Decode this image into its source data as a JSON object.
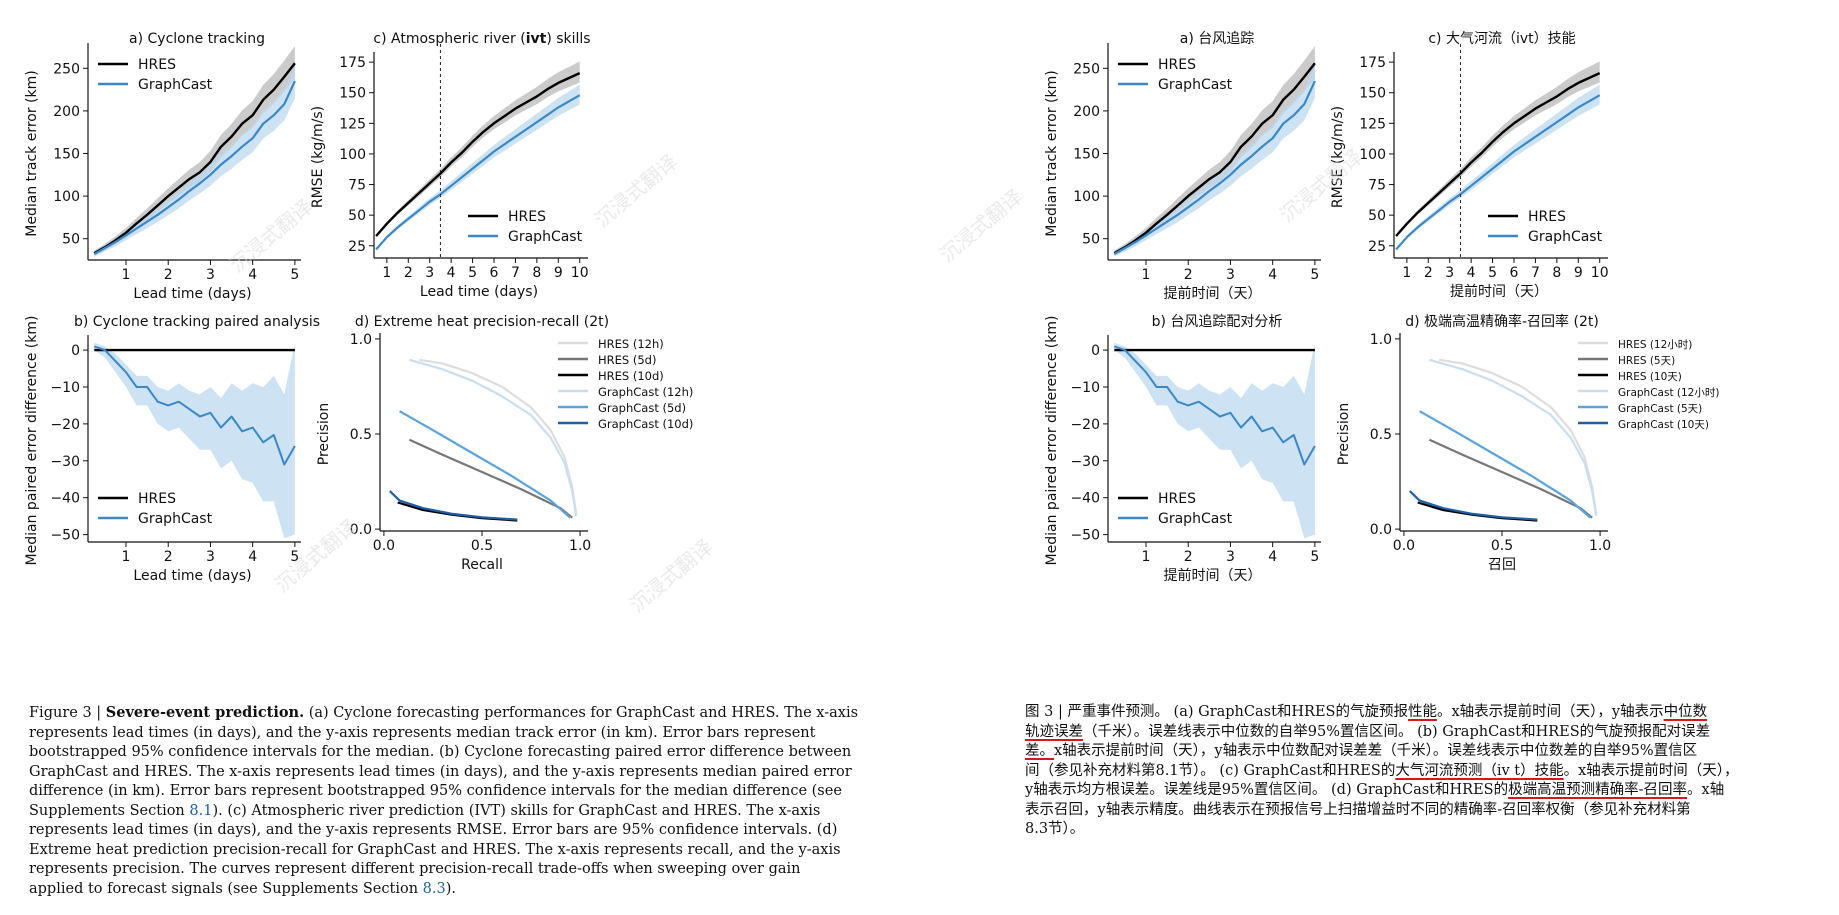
{
  "left": {
    "panels": {
      "a": {
        "title": "a) Cyclone tracking",
        "ylabel": "Median track error (km)",
        "xlabel": "Lead time (days)",
        "yticks": [
          "50",
          "100",
          "150",
          "200",
          "250"
        ],
        "xticks": [
          "1",
          "2",
          "3",
          "4",
          "5"
        ],
        "legend": [
          "HRES",
          "GraphCast"
        ]
      },
      "b": {
        "title": "b) Cyclone tracking paired analysis",
        "ylabel": "Median paired error difference (km)",
        "xlabel": "Lead time (days)",
        "yticks": [
          "0",
          "−10",
          "−20",
          "−30",
          "−40",
          "−50"
        ],
        "xticks": [
          "1",
          "2",
          "3",
          "4",
          "5"
        ],
        "legend": [
          "HRES",
          "GraphCast"
        ]
      },
      "c": {
        "title_prefix": "c) Atmospheric river (",
        "title_bold": "ivt",
        "title_suffix": ") skills",
        "ylabel": "RMSE (kg/m/s)",
        "xlabel": "Lead time (days)",
        "yticks": [
          "25",
          "50",
          "75",
          "100",
          "125",
          "150",
          "175"
        ],
        "xticks": [
          "1",
          "2",
          "3",
          "4",
          "5",
          "6",
          "7",
          "8",
          "9",
          "10"
        ],
        "legend": [
          "HRES",
          "GraphCast"
        ]
      },
      "d": {
        "title_prefix": "d) Extreme heat precision-recall (",
        "title_bold": "2t",
        "title_suffix": ")",
        "ylabel": "Precision",
        "xlabel": "Recall",
        "yticks": [
          "0.0",
          "0.5",
          "1.0"
        ],
        "xticks": [
          "0.0",
          "0.5",
          "1.0"
        ],
        "legend": [
          "HRES (12h)",
          "HRES (5d)",
          "HRES (10d)",
          "GraphCast (12h)",
          "GraphCast (5d)",
          "GraphCast (10d)"
        ]
      }
    },
    "caption": {
      "fig": "Figure 3 | ",
      "title": "Severe-event prediction.",
      "p1": " (a) Cyclone forecasting performances for GraphCast and HRES. The x-axis represents lead times (in days), and the y-axis represents median track error (in km). Error bars represent bootstrapped 95% confidence intervals for the median. (b) Cyclone forecasting paired error difference between GraphCast and HRES. The x-axis represents lead times (in days), and the y-axis represents median paired error difference (in km). Error bars represent bootstrapped 95% confidence intervals for the median difference (see Supplements Section ",
      "ref1": "8.1",
      "p2": "). (c) Atmospheric river prediction (IVT) skills for GraphCast and HRES. The x-axis represents lead times (in days), and the y-axis represents RMSE. Error bars are 95% confidence intervals. (d) Extreme heat prediction precision-recall for GraphCast and HRES. The x-axis represents recall, and the y-axis represents precision. The curves represent different precision-recall trade-offs when sweeping over gain applied to forecast signals (see Supplements Section ",
      "ref2": "8.3",
      "p3": ")."
    }
  },
  "right": {
    "panels": {
      "a": {
        "title": "a) 台风追踪",
        "ylabel": "Median track error (km)",
        "xlabel": "提前时间（天）",
        "yticks": [
          "50",
          "100",
          "150",
          "200",
          "250"
        ],
        "xticks": [
          "1",
          "2",
          "3",
          "4",
          "5"
        ],
        "legend": [
          "HRES",
          "GraphCast"
        ]
      },
      "b": {
        "title": "b) 台风追踪配对分析",
        "ylabel": "Median paired error difference (km)",
        "xlabel": "提前时间（天）",
        "yticks": [
          "0",
          "−10",
          "−20",
          "−30",
          "−40",
          "−50"
        ],
        "xticks": [
          "1",
          "2",
          "3",
          "4",
          "5"
        ],
        "legend": [
          "HRES",
          "GraphCast"
        ]
      },
      "c": {
        "title": "c) 大气河流（ivt）技能",
        "ylabel": "RMSE (kg/m/s)",
        "xlabel": "提前时间（天）",
        "yticks": [
          "25",
          "50",
          "75",
          "100",
          "125",
          "150",
          "175"
        ],
        "xticks": [
          "1",
          "2",
          "3",
          "4",
          "5",
          "6",
          "7",
          "8",
          "9",
          "10"
        ],
        "legend": [
          "HRES",
          "GraphCast"
        ]
      },
      "d": {
        "title": "d) 极端高温精确率-召回率 (2t)",
        "ylabel": "Precision",
        "xlabel": "召回",
        "yticks": [
          "0.0",
          "0.5",
          "1.0"
        ],
        "xticks": [
          "0.0",
          "0.5",
          "1.0"
        ],
        "legend": [
          "HRES (12小时)",
          "HRES (5天)",
          "HRES (10天)",
          "GraphCast (12小时)",
          "GraphCast (5天)",
          "GraphCast (10天)"
        ]
      }
    },
    "caption": {
      "lines": [
        "图 3 | 严重事件预测。 (a) GraphCast和HRES的气旋预报性能。x轴表示提前时间（天），y轴表示中位数",
        "轨迹误差（千米）。误差线表示中位数的自举95%置信区间。 (b) GraphCast和HRES的气旋预报配对误差",
        "差。x轴表示提前时间（天），y轴表示中位数配对误差差（千米）。误差线表示中位数差的自举95%置信区",
        "间（参见补充材料第8.1节）。 (c) GraphCast和HRES的大气河流预测（iv t）技能。x轴表示提前时间（天），",
        "y轴表示均方根误差。误差线是95%置信区间。 (d) GraphCast和HRES的极端高温预测精确率-召回率。x轴",
        "表示召回，y轴表示精度。曲线表示在预报信号上扫描增益时不同的精确率-召回率权衡（参见补充材料第",
        "8.3节）。"
      ]
    }
  },
  "watermark": "沉浸式翻译",
  "colors": {
    "hres": "#000000",
    "graphcast": "#3a88c8",
    "hres_band": "#b9b9b9",
    "gc_band": "#bcd8ee",
    "hres12": "#dddddd",
    "hres5": "#777777",
    "gc12": "#c9def0",
    "gc5": "#5ba3dc",
    "gc10": "#1f5fa8"
  },
  "chart_data": [
    {
      "type": "line",
      "title": "a) Cyclone tracking",
      "xlabel": "Lead time (days)",
      "ylabel": "Median track error (km)",
      "xlim": [
        0,
        5
      ],
      "ylim": [
        25,
        275
      ],
      "x": [
        0.25,
        0.5,
        0.75,
        1,
        1.25,
        1.5,
        1.75,
        2,
        2.25,
        2.5,
        2.75,
        3,
        3.25,
        3.5,
        3.75,
        4,
        4.25,
        4.5,
        4.75,
        5
      ],
      "series": [
        {
          "name": "HRES",
          "values": [
            33,
            40,
            48,
            57,
            68,
            78,
            89,
            100,
            110,
            120,
            128,
            140,
            158,
            170,
            185,
            195,
            213,
            225,
            240,
            256
          ]
        },
        {
          "name": "GraphCast",
          "values": [
            32,
            39,
            46,
            54,
            62,
            70,
            78,
            87,
            96,
            106,
            115,
            125,
            137,
            147,
            158,
            168,
            185,
            195,
            208,
            235
          ]
        }
      ]
    },
    {
      "type": "line",
      "title": "b) Cyclone tracking paired analysis",
      "xlabel": "Lead time (days)",
      "ylabel": "Median paired error difference (km)",
      "xlim": [
        0,
        5
      ],
      "ylim": [
        -52,
        3
      ],
      "x": [
        0.25,
        0.5,
        0.75,
        1,
        1.25,
        1.5,
        1.75,
        2,
        2.25,
        2.5,
        2.75,
        3,
        3.25,
        3.5,
        3.75,
        4,
        4.25,
        4.5,
        4.75,
        5
      ],
      "series": [
        {
          "name": "HRES",
          "values": [
            0,
            0,
            0,
            0,
            0,
            0,
            0,
            0,
            0,
            0,
            0,
            0,
            0,
            0,
            0,
            0,
            0,
            0,
            0,
            0
          ]
        },
        {
          "name": "GraphCast",
          "values": [
            1,
            0,
            -3,
            -6,
            -10,
            -10,
            -14,
            -15,
            -14,
            -16,
            -18,
            -17,
            -21,
            -18,
            -22,
            -21,
            -25,
            -23,
            -31,
            -26
          ]
        }
      ]
    },
    {
      "type": "line",
      "title": "c) Atmospheric river (ivt) skills",
      "xlabel": "Lead time (days)",
      "ylabel": "RMSE (kg/m/s)",
      "xlim": [
        0.5,
        10
      ],
      "ylim": [
        15,
        180
      ],
      "x": [
        0.5,
        1,
        1.5,
        2,
        2.5,
        3,
        3.5,
        4,
        4.5,
        5,
        5.5,
        6,
        6.5,
        7,
        7.5,
        8,
        8.5,
        9,
        9.5,
        10
      ],
      "series": [
        {
          "name": "HRES",
          "values": [
            33,
            43,
            52,
            60,
            68,
            76,
            84,
            93,
            101,
            110,
            118,
            125,
            131,
            137,
            142,
            147,
            153,
            158,
            162,
            166
          ]
        },
        {
          "name": "GraphCast",
          "values": [
            22,
            32,
            40,
            47,
            54,
            61,
            67,
            74,
            81,
            88,
            95,
            102,
            108,
            114,
            120,
            126,
            132,
            138,
            143,
            148
          ]
        }
      ]
    },
    {
      "type": "line",
      "title": "d) Extreme heat precision-recall (2t)",
      "xlabel": "Recall",
      "ylabel": "Precision",
      "xlim": [
        0,
        1
      ],
      "ylim": [
        0,
        1
      ],
      "series": [
        {
          "name": "HRES (12h)",
          "x": [
            0.18,
            0.3,
            0.45,
            0.6,
            0.75,
            0.85,
            0.92,
            0.96,
            0.98
          ],
          "values": [
            0.89,
            0.87,
            0.82,
            0.75,
            0.64,
            0.52,
            0.38,
            0.22,
            0.08
          ]
        },
        {
          "name": "HRES (5d)",
          "x": [
            0.13,
            0.3,
            0.5,
            0.7,
            0.9,
            0.96
          ],
          "values": [
            0.47,
            0.39,
            0.3,
            0.21,
            0.11,
            0.06
          ]
        },
        {
          "name": "HRES (10d)",
          "x": [
            0.07,
            0.2,
            0.35,
            0.5,
            0.68
          ],
          "values": [
            0.14,
            0.1,
            0.075,
            0.058,
            0.045
          ]
        },
        {
          "name": "GraphCast (12h)",
          "x": [
            0.13,
            0.3,
            0.45,
            0.6,
            0.75,
            0.85,
            0.92,
            0.96,
            0.98
          ],
          "values": [
            0.89,
            0.84,
            0.78,
            0.7,
            0.6,
            0.48,
            0.35,
            0.2,
            0.07
          ]
        },
        {
          "name": "GraphCast (5d)",
          "x": [
            0.08,
            0.25,
            0.45,
            0.65,
            0.85,
            0.95
          ],
          "values": [
            0.62,
            0.52,
            0.4,
            0.28,
            0.15,
            0.06
          ]
        },
        {
          "name": "GraphCast (10d)",
          "x": [
            0.03,
            0.08,
            0.2,
            0.35,
            0.5,
            0.68
          ],
          "values": [
            0.2,
            0.15,
            0.11,
            0.08,
            0.062,
            0.05
          ]
        }
      ]
    }
  ]
}
